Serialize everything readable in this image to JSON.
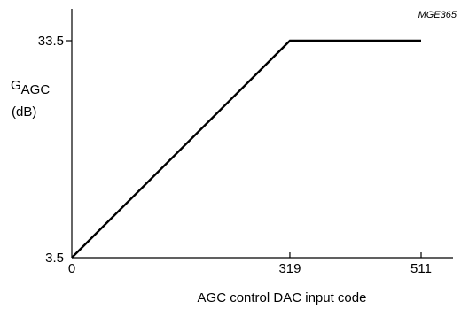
{
  "chart_data": {
    "type": "line",
    "figure_id": "MGE365",
    "ylabel": {
      "main": "G",
      "subscript": "AGC",
      "unit": "(dB)"
    },
    "xlabel": "AGC control DAC input code",
    "xlim": [
      0,
      511
    ],
    "ylim": [
      3.5,
      33.5
    ],
    "x_ticks": [
      0,
      319,
      511
    ],
    "x_tick_labels": [
      "0",
      "319",
      "511"
    ],
    "y_ticks": [
      3.5,
      33.5
    ],
    "y_tick_labels": [
      "3.5",
      "33.5"
    ],
    "grid": false,
    "series": [
      {
        "x": [
          0,
          319,
          511
        ],
        "y": [
          3.5,
          33.5,
          33.5
        ],
        "color": "#000000"
      }
    ]
  }
}
